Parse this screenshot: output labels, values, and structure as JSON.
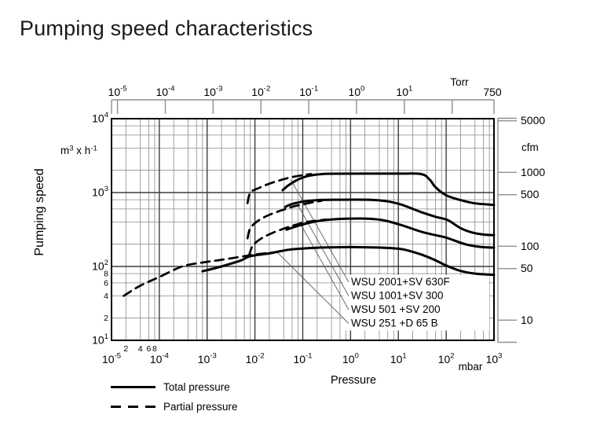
{
  "chart_data": {
    "type": "line",
    "title": "Pumping speed characteristics",
    "x_scale": "log",
    "y_scale": "log",
    "x_axis_bottom": {
      "label": "Pressure",
      "unit": "mbar",
      "min_exp": -5,
      "max_exp": 3,
      "minor_tick_labels": [
        "2",
        "4",
        "6",
        "8"
      ]
    },
    "x_axis_top": {
      "unit": "Torr",
      "min_exp": -5,
      "max_exp": 1,
      "end_label": "750",
      "mbar_per_torr": 1.3332
    },
    "y_axis_left": {
      "label": "Pumping speed",
      "unit_parts": [
        [
          "m",
          false
        ],
        [
          "3",
          true
        ],
        [
          " x h",
          false
        ],
        [
          "-1",
          true
        ]
      ],
      "min_exp": 1,
      "max_exp": 4,
      "minor_tick_labels": [
        "8",
        "6",
        "4",
        "2"
      ]
    },
    "y_axis_right": {
      "unit": "cfm",
      "ticks": [
        5000,
        1000,
        500,
        100,
        50,
        10
      ],
      "m3h_per_cfm": 1.699
    },
    "legend": [
      {
        "label": "Total pressure",
        "style": "solid"
      },
      {
        "label": "Partial pressure",
        "style": "dashed"
      }
    ],
    "series": [
      {
        "model": "WSU 2001+SV 630F",
        "pressure": "total",
        "points": [
          [
            0.038,
            1075
          ],
          [
            0.05,
            1250
          ],
          [
            0.08,
            1500
          ],
          [
            0.13,
            1680
          ],
          [
            0.25,
            1780
          ],
          [
            0.6,
            1800
          ],
          [
            2,
            1805
          ],
          [
            10,
            1805
          ],
          [
            30,
            1780
          ],
          [
            45,
            1500
          ],
          [
            60,
            1180
          ],
          [
            100,
            920
          ],
          [
            200,
            790
          ],
          [
            400,
            715
          ],
          [
            1000,
            680
          ]
        ]
      },
      {
        "model": "WSU 2001+SV 630F",
        "pressure": "partial",
        "points": [
          [
            0.007,
            720
          ],
          [
            0.008,
            1000
          ],
          [
            0.012,
            1150
          ],
          [
            0.02,
            1320
          ],
          [
            0.035,
            1480
          ],
          [
            0.06,
            1620
          ],
          [
            0.1,
            1720
          ],
          [
            0.15,
            1780
          ]
        ]
      },
      {
        "model": "WSU 1001+SV 300",
        "pressure": "total",
        "points": [
          [
            0.043,
            640
          ],
          [
            0.06,
            700
          ],
          [
            0.1,
            755
          ],
          [
            0.2,
            790
          ],
          [
            0.5,
            800
          ],
          [
            2.4,
            800
          ],
          [
            6,
            760
          ],
          [
            12,
            680
          ],
          [
            31,
            540
          ],
          [
            60,
            470
          ],
          [
            107,
            425
          ],
          [
            200,
            330
          ],
          [
            370,
            285
          ],
          [
            700,
            268
          ],
          [
            1000,
            265
          ]
        ]
      },
      {
        "model": "WSU 1001+SV 300",
        "pressure": "partial",
        "points": [
          [
            0.007,
            240
          ],
          [
            0.008,
            330
          ],
          [
            0.012,
            420
          ],
          [
            0.02,
            500
          ],
          [
            0.035,
            570
          ],
          [
            0.06,
            640
          ],
          [
            0.12,
            710
          ],
          [
            0.25,
            775
          ]
        ]
      },
      {
        "model": "WSU 501 +SV 200",
        "pressure": "total",
        "points": [
          [
            0.046,
            315
          ],
          [
            0.08,
            355
          ],
          [
            0.15,
            395
          ],
          [
            0.3,
            425
          ],
          [
            0.8,
            442
          ],
          [
            2.4,
            443
          ],
          [
            5,
            420
          ],
          [
            12,
            360
          ],
          [
            31,
            293
          ],
          [
            60,
            265
          ],
          [
            101,
            245
          ],
          [
            250,
            200
          ],
          [
            540,
            183
          ],
          [
            1000,
            180
          ]
        ]
      },
      {
        "model": "WSU 501 +SV 200",
        "pressure": "partial",
        "points": [
          [
            0.0075,
            140
          ],
          [
            0.009,
            190
          ],
          [
            0.013,
            235
          ],
          [
            0.022,
            280
          ],
          [
            0.04,
            325
          ],
          [
            0.07,
            365
          ],
          [
            0.12,
            400
          ],
          [
            0.3,
            432
          ]
        ]
      },
      {
        "model": "WSU 251 +D 65 B",
        "pressure": "total",
        "points": [
          [
            0.0008,
            86
          ],
          [
            0.002,
            100
          ],
          [
            0.005,
            120
          ],
          [
            0.008,
            138
          ],
          [
            0.02,
            150
          ],
          [
            0.05,
            168
          ],
          [
            0.15,
            178
          ],
          [
            0.5,
            182
          ],
          [
            2,
            182
          ],
          [
            5,
            179
          ],
          [
            10,
            174
          ],
          [
            15,
            166
          ],
          [
            31,
            144
          ],
          [
            60,
            121
          ],
          [
            100,
            103
          ],
          [
            200,
            87
          ],
          [
            400,
            80
          ],
          [
            1000,
            77
          ]
        ]
      },
      {
        "model": "WSU 251 +D 65 B",
        "pressure": "partial",
        "points": [
          [
            1.8e-05,
            40
          ],
          [
            4e-05,
            55
          ],
          [
            0.0001,
            72
          ],
          [
            0.0003,
            100
          ],
          [
            0.0008,
            113
          ],
          [
            0.002,
            123
          ],
          [
            0.005,
            135
          ],
          [
            0.01,
            145
          ],
          [
            0.025,
            155
          ]
        ]
      }
    ],
    "curve_labels": [
      {
        "text": "WSU 2001+SV 630F",
        "anchor": [
          0.056,
          1500
        ]
      },
      {
        "text": "WSU 1001+SV 300",
        "anchor": [
          0.073,
          745
        ]
      },
      {
        "text": "WSU 501  +SV 200",
        "anchor": [
          0.088,
          385
        ]
      },
      {
        "text": "WSU 251  +D 65 B",
        "anchor": [
          0.028,
          160
        ]
      }
    ]
  },
  "colors": {
    "line": "#000000",
    "grid_minor": "#8a8a8a",
    "grid_major": "#3d3d3d",
    "frame": "#000000",
    "aux_axis": "#8f8f8f",
    "callout": "#606060",
    "text": "#000000",
    "background": "#ffffff"
  }
}
